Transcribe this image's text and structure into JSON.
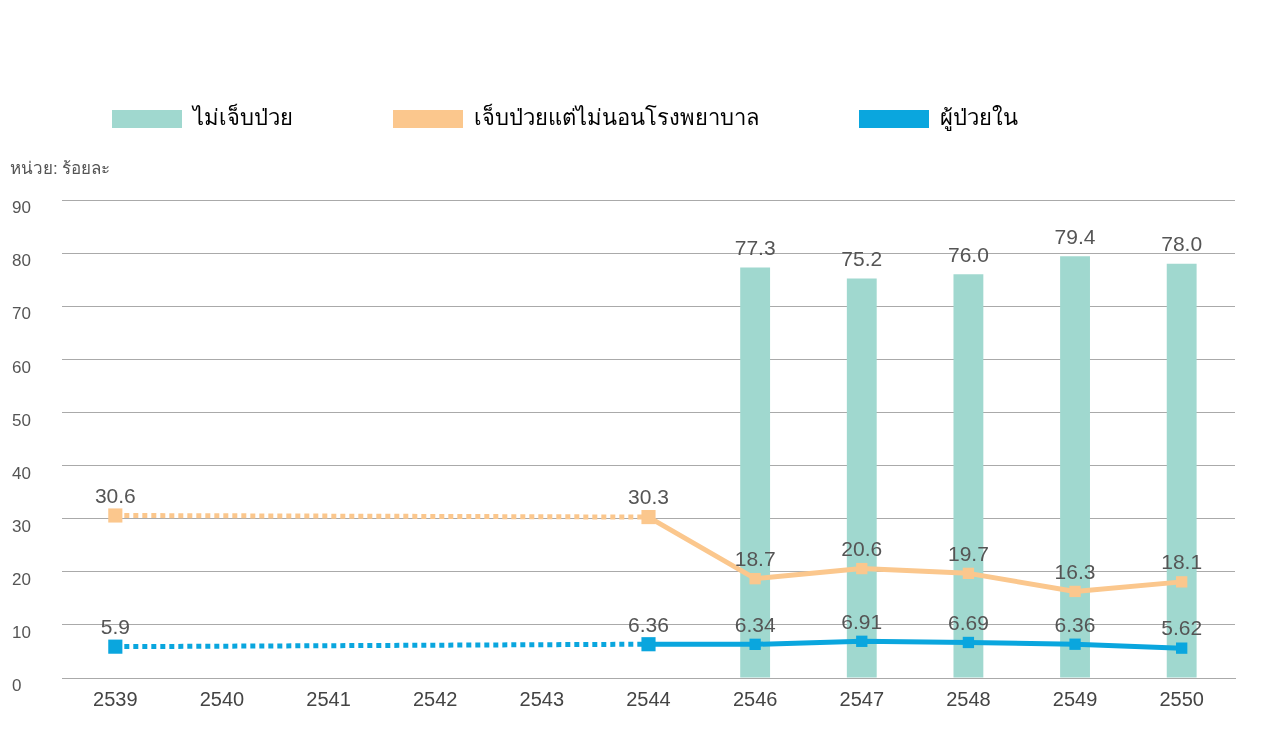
{
  "chart_data": {
    "type": "bar",
    "ylabel": "หน่วย: ร้อยละ",
    "categories": [
      "2539",
      "2540",
      "2541",
      "2542",
      "2543",
      "2544",
      "2546",
      "2547",
      "2548",
      "2549",
      "2550"
    ],
    "ylim": [
      0,
      90
    ],
    "yticks": [
      0,
      10,
      20,
      30,
      40,
      50,
      60,
      70,
      80,
      90
    ],
    "grid": "y",
    "legend": "top left",
    "marker": "square",
    "series": [
      {
        "name": "ไม่เจ็บป่วย",
        "color": "#a0d8cf",
        "values": [
          null,
          null,
          null,
          null,
          null,
          null,
          77.3,
          75.2,
          76.0,
          79.4,
          78.0
        ],
        "value_labels": [
          null,
          null,
          null,
          null,
          null,
          null,
          "77.3",
          "75.2",
          "76.0",
          "79.4",
          "78.0"
        ]
      },
      {
        "name": "เจ็บป่วยแต่ไม่นอนโรงพยาบาล",
        "type": "line",
        "line_style": "solid",
        "color": "#fbc78d",
        "values": [
          null,
          null,
          null,
          null,
          null,
          30.3,
          18.7,
          20.6,
          19.7,
          16.3,
          18.1
        ],
        "value_labels": [
          null,
          null,
          null,
          null,
          null,
          "30.3",
          "18.7",
          "20.6",
          "19.7",
          "16.3",
          "18.1"
        ]
      },
      {
        "name": "ผู้ป่วยใน",
        "type": "line",
        "line_style": "solid",
        "color": "#0aa6de",
        "values": [
          null,
          null,
          null,
          null,
          null,
          6.36,
          6.34,
          6.91,
          6.69,
          6.36,
          5.62
        ],
        "value_labels": [
          null,
          null,
          null,
          null,
          null,
          "6.36",
          "6.34",
          "6.91",
          "6.69",
          "6.36",
          "5.62"
        ]
      },
      {
        "type": "line",
        "line_style": "dotted",
        "color": "#fbc78d",
        "values": [
          30.6,
          null,
          null,
          null,
          null,
          30.3,
          null,
          null,
          null,
          null,
          null
        ],
        "value_labels": [
          "30.6",
          null,
          null,
          null,
          null,
          null,
          null,
          null,
          null,
          null,
          null
        ]
      },
      {
        "type": "line",
        "line_style": "dotted",
        "color": "#0aa6de",
        "values": [
          5.9,
          null,
          null,
          null,
          null,
          6.36,
          null,
          null,
          null,
          null,
          null
        ],
        "value_labels": [
          "5.9",
          null,
          null,
          null,
          null,
          null,
          null,
          null,
          null,
          null,
          null
        ]
      }
    ]
  }
}
